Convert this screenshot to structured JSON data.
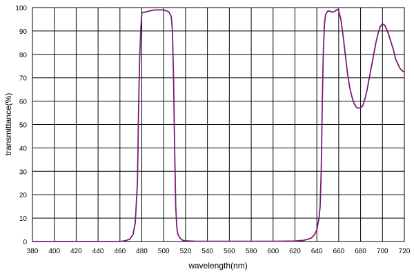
{
  "chart_data": {
    "type": "line",
    "title": "",
    "xlabel": "wavelength(nm)",
    "ylabel": "transmittance(%)",
    "xlim": [
      380,
      720
    ],
    "ylim": [
      0,
      100
    ],
    "xticks": [
      380,
      400,
      420,
      440,
      460,
      480,
      500,
      520,
      540,
      560,
      580,
      600,
      620,
      640,
      660,
      680,
      700,
      720
    ],
    "yticks": [
      0,
      10,
      20,
      30,
      40,
      50,
      60,
      70,
      80,
      90,
      100
    ],
    "grid": true,
    "legend": "none",
    "line_color": "#7a1a7a",
    "series": [
      {
        "x": [
          380,
          460,
          463,
          466,
          469,
          472,
          474,
          476,
          477,
          478,
          479,
          480,
          481,
          482,
          485,
          488,
          492,
          496,
          500,
          503,
          505,
          507,
          508,
          509,
          510,
          511,
          512,
          513,
          515,
          517,
          520,
          530,
          560,
          600,
          620,
          628,
          632,
          635,
          638,
          640,
          642,
          643,
          644,
          645,
          646,
          647,
          648,
          650,
          652,
          654,
          656,
          658,
          659,
          660,
          662,
          664,
          666,
          668,
          670,
          672,
          674,
          676,
          678,
          680,
          682,
          684,
          686,
          688,
          690,
          692,
          694,
          696,
          698,
          700,
          702,
          704,
          706,
          708,
          710,
          712,
          714,
          716,
          718,
          720
        ],
        "y": [
          0,
          0,
          0.2,
          0.5,
          1,
          3,
          8,
          25,
          55,
          78,
          90,
          97.5,
          98,
          98,
          98.3,
          98.7,
          99,
          99,
          99,
          98.5,
          98,
          96,
          90,
          70,
          40,
          15,
          6,
          3,
          1.5,
          0.6,
          0.3,
          0.1,
          0.1,
          0.1,
          0.2,
          0.5,
          1,
          1.5,
          3,
          5,
          10,
          15,
          30,
          60,
          82,
          93,
          97,
          98.5,
          98.5,
          98,
          98.3,
          99,
          99.2,
          98.5,
          95,
          88,
          80,
          72,
          66,
          62,
          59,
          57.5,
          57,
          57.2,
          58,
          61,
          65,
          70,
          75,
          80,
          85,
          89,
          92,
          93,
          92.5,
          90.5,
          88,
          85,
          82,
          78,
          76,
          74,
          73,
          72.5
        ]
      }
    ]
  }
}
